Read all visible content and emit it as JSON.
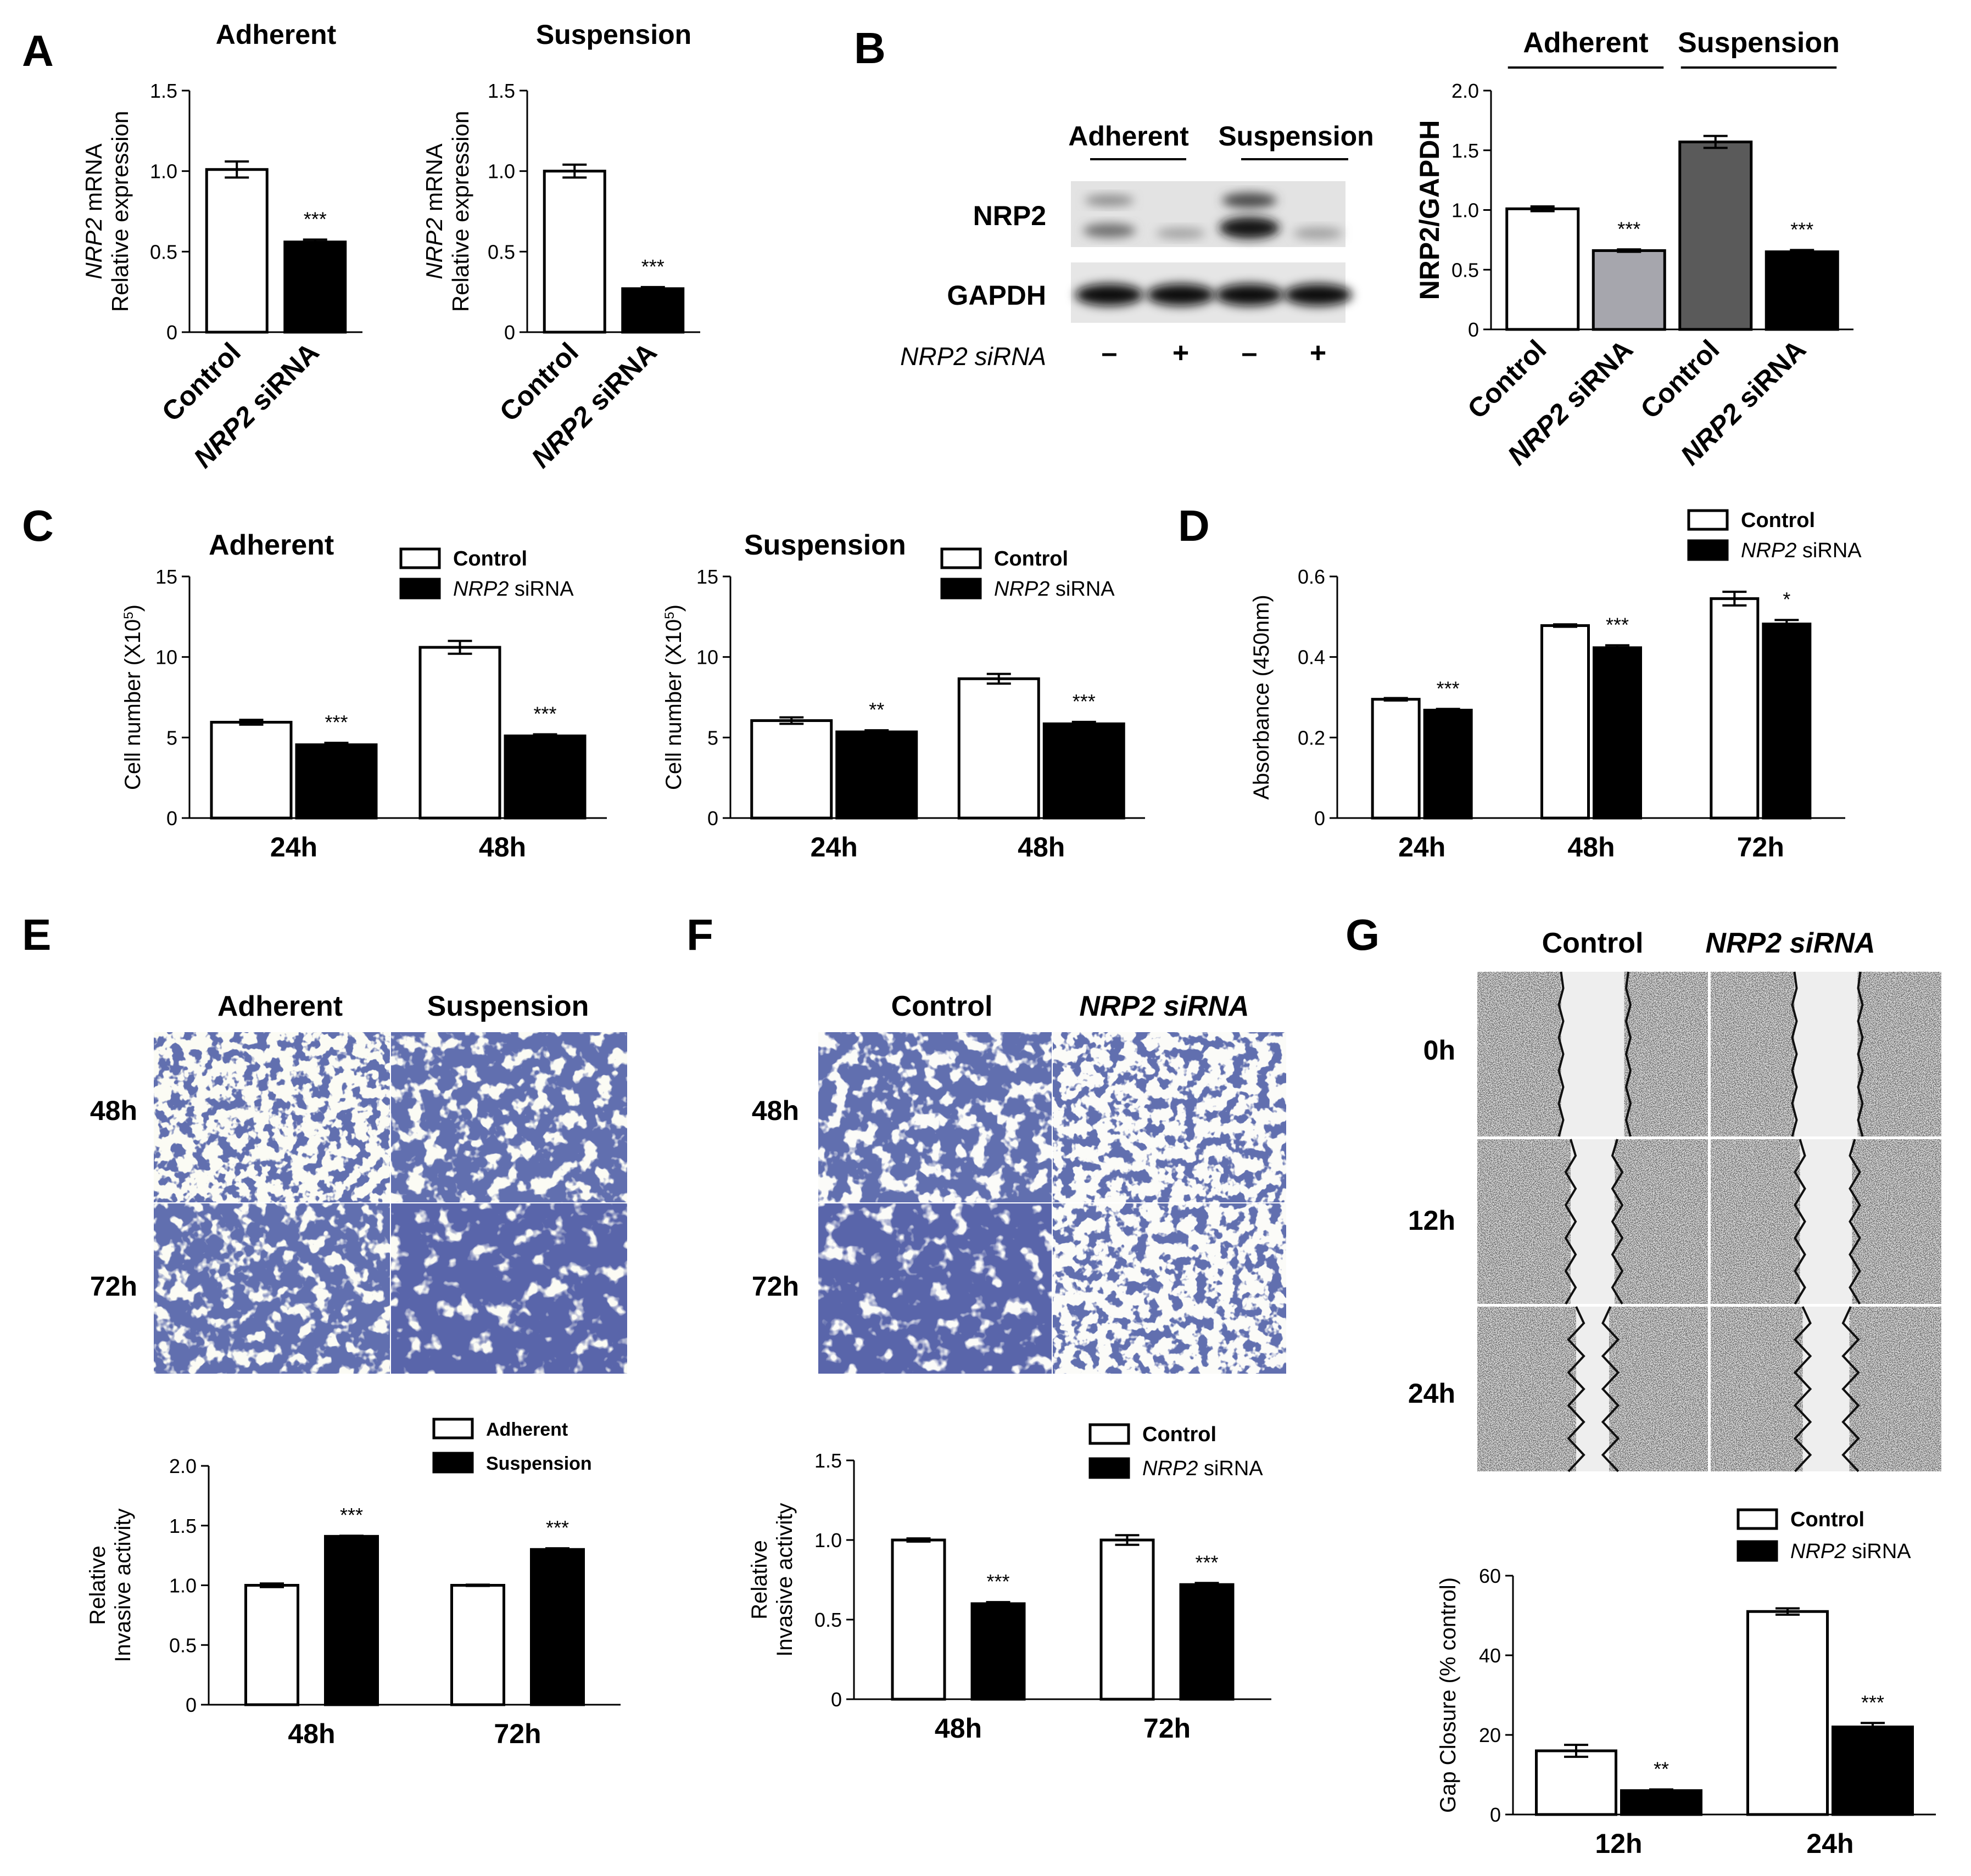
{
  "panel_letters": [
    "A",
    "B",
    "C",
    "D",
    "E",
    "F",
    "G"
  ],
  "colors": {
    "bar_black": "#000000",
    "bar_white": "#ffffff",
    "bar_lightgray": "#a6a6ad",
    "bar_darkgray": "#5a5a5a",
    "stain_blue": "#1e2a6e"
  },
  "chart_data": [
    {
      "id": "A1",
      "type": "bar",
      "title": "Adherent",
      "ylabel": "NRP2 mRNA Relative expression",
      "ylim": [
        0,
        1.5
      ],
      "yticks": [
        "0",
        "0.5",
        "1.0",
        "1.5"
      ],
      "categories": [
        "Control",
        "NRP2 siRNA"
      ],
      "values": [
        1.01,
        0.56
      ],
      "errors": [
        0.05,
        0.015
      ],
      "sig": [
        "",
        "***"
      ]
    },
    {
      "id": "A2",
      "type": "bar",
      "title": "Suspension",
      "ylabel": "NRP2 mRNA Relative expression",
      "ylim": [
        0,
        1.5
      ],
      "yticks": [
        "0",
        "0.5",
        "1.0",
        "1.5"
      ],
      "categories": [
        "Control",
        "NRP2 siRNA"
      ],
      "values": [
        1.0,
        0.27
      ],
      "errors": [
        0.04,
        0.01
      ],
      "sig": [
        "",
        "***"
      ]
    },
    {
      "id": "B",
      "type": "bar",
      "group_labels": [
        "Adherent",
        "Suspension"
      ],
      "ylabel": "NRP2/GAPDH",
      "ylim": [
        0,
        2.0
      ],
      "yticks": [
        "0",
        "0.5",
        "1.0",
        "1.5",
        "2.0"
      ],
      "categories": [
        "Control",
        "NRP2 siRNA",
        "Control",
        "NRP2 siRNA"
      ],
      "values": [
        1.01,
        0.66,
        1.57,
        0.65
      ],
      "errors": [
        0.02,
        0.01,
        0.05,
        0.015
      ],
      "sig": [
        "",
        "***",
        "",
        "***"
      ]
    },
    {
      "id": "C1",
      "type": "bar",
      "title": "Adherent",
      "ylabel": "Cell number (X10",
      "ylabel_sup": "5",
      "ylabel_end": ")",
      "ylim": [
        0,
        15
      ],
      "yticks": [
        "0",
        "5",
        "10",
        "15"
      ],
      "categories": [
        "24h",
        "48h"
      ],
      "legend": [
        "Control",
        "NRP2 siRNA"
      ],
      "series": [
        {
          "name": "Control",
          "values": [
            5.95,
            10.6
          ],
          "errors": [
            0.15,
            0.4
          ]
        },
        {
          "name": "NRP2 siRNA",
          "values": [
            4.55,
            5.1
          ],
          "errors": [
            0.12,
            0.1
          ]
        }
      ],
      "sig": [
        "***",
        "***"
      ]
    },
    {
      "id": "C2",
      "type": "bar",
      "title": "Suspension",
      "ylabel": "Cell number (X10",
      "ylabel_sup": "5",
      "ylabel_end": ")",
      "ylim": [
        0,
        15
      ],
      "yticks": [
        "0",
        "5",
        "10",
        "15"
      ],
      "categories": [
        "24h",
        "48h"
      ],
      "legend": [
        "Control",
        "NRP2 siRNA"
      ],
      "series": [
        {
          "name": "Control",
          "values": [
            6.05,
            8.65
          ],
          "errors": [
            0.2,
            0.3
          ]
        },
        {
          "name": "NRP2 siRNA",
          "values": [
            5.35,
            5.85
          ],
          "errors": [
            0.1,
            0.12
          ]
        }
      ],
      "sig": [
        "**",
        "***"
      ]
    },
    {
      "id": "D",
      "type": "bar",
      "ylabel": "Absorbance (450nm)",
      "ylim": [
        0,
        0.6
      ],
      "yticks": [
        "0",
        "0.2",
        "0.4",
        "0.6"
      ],
      "categories": [
        "24h",
        "48h",
        "72h"
      ],
      "legend": [
        "Control",
        "NRP2 siRNA"
      ],
      "series": [
        {
          "name": "Control",
          "values": [
            0.295,
            0.478,
            0.545
          ],
          "errors": [
            0.003,
            0.003,
            0.017
          ]
        },
        {
          "name": "NRP2 siRNA",
          "values": [
            0.268,
            0.423,
            0.482
          ],
          "errors": [
            0.003,
            0.006,
            0.01
          ]
        }
      ],
      "sig": [
        "***",
        "***",
        "*"
      ]
    },
    {
      "id": "E",
      "type": "bar",
      "ylabel": "Relative Invasive activity",
      "ylim": [
        0,
        2.0
      ],
      "yticks": [
        "0",
        "0.5",
        "1.0",
        "1.5",
        "2.0"
      ],
      "categories": [
        "48h",
        "72h"
      ],
      "legend": [
        "Adherent",
        "Suspension"
      ],
      "series": [
        {
          "name": "Adherent",
          "values": [
            1.0,
            1.0
          ],
          "errors": [
            0.015,
            0.005
          ]
        },
        {
          "name": "Suspension",
          "values": [
            1.41,
            1.3
          ],
          "errors": [
            0.005,
            0.01
          ]
        }
      ],
      "sig": [
        "***",
        "***"
      ]
    },
    {
      "id": "F",
      "type": "bar",
      "ylabel": "Relative Invasive activity",
      "ylim": [
        0,
        1.5
      ],
      "yticks": [
        "0",
        "0.5",
        "1.0",
        "1.5"
      ],
      "categories": [
        "48h",
        "72h"
      ],
      "legend": [
        "Control",
        "NRP2 siRNA"
      ],
      "series": [
        {
          "name": "Control",
          "values": [
            1.0,
            1.0
          ],
          "errors": [
            0.01,
            0.03
          ]
        },
        {
          "name": "NRP2 siRNA",
          "values": [
            0.6,
            0.72
          ],
          "errors": [
            0.01,
            0.01
          ]
        }
      ],
      "sig": [
        "***",
        "***"
      ]
    },
    {
      "id": "G",
      "type": "bar",
      "ylabel": "Gap Closure (% control)",
      "ylim": [
        0,
        60
      ],
      "yticks": [
        "0",
        "20",
        "40",
        "60"
      ],
      "categories": [
        "12h",
        "24h"
      ],
      "legend": [
        "Control",
        "NRP2 siRNA"
      ],
      "series": [
        {
          "name": "Control",
          "values": [
            16,
            51
          ],
          "errors": [
            1.5,
            0.8
          ]
        },
        {
          "name": "NRP2 siRNA",
          "values": [
            6,
            22
          ],
          "errors": [
            0.3,
            1.0
          ]
        }
      ],
      "sig": [
        "**",
        "***"
      ]
    }
  ],
  "western_blot": {
    "group_labels": [
      "Adherent",
      "Suspension"
    ],
    "row_labels": [
      "NRP2",
      "GAPDH"
    ],
    "sirna_label": "NRP2 siRNA",
    "lane_signs": [
      "–",
      "+",
      "–",
      "+"
    ]
  },
  "micro_E": {
    "col_labels": [
      "Adherent",
      "Suspension"
    ],
    "row_labels": [
      "48h",
      "72h"
    ]
  },
  "micro_F": {
    "col_labels": [
      "Control",
      "NRP2 siRNA"
    ],
    "row_labels": [
      "48h",
      "72h"
    ]
  },
  "micro_G": {
    "col_labels": [
      "Control",
      "NRP2 siRNA"
    ],
    "row_labels": [
      "0h",
      "12h",
      "24h"
    ]
  }
}
